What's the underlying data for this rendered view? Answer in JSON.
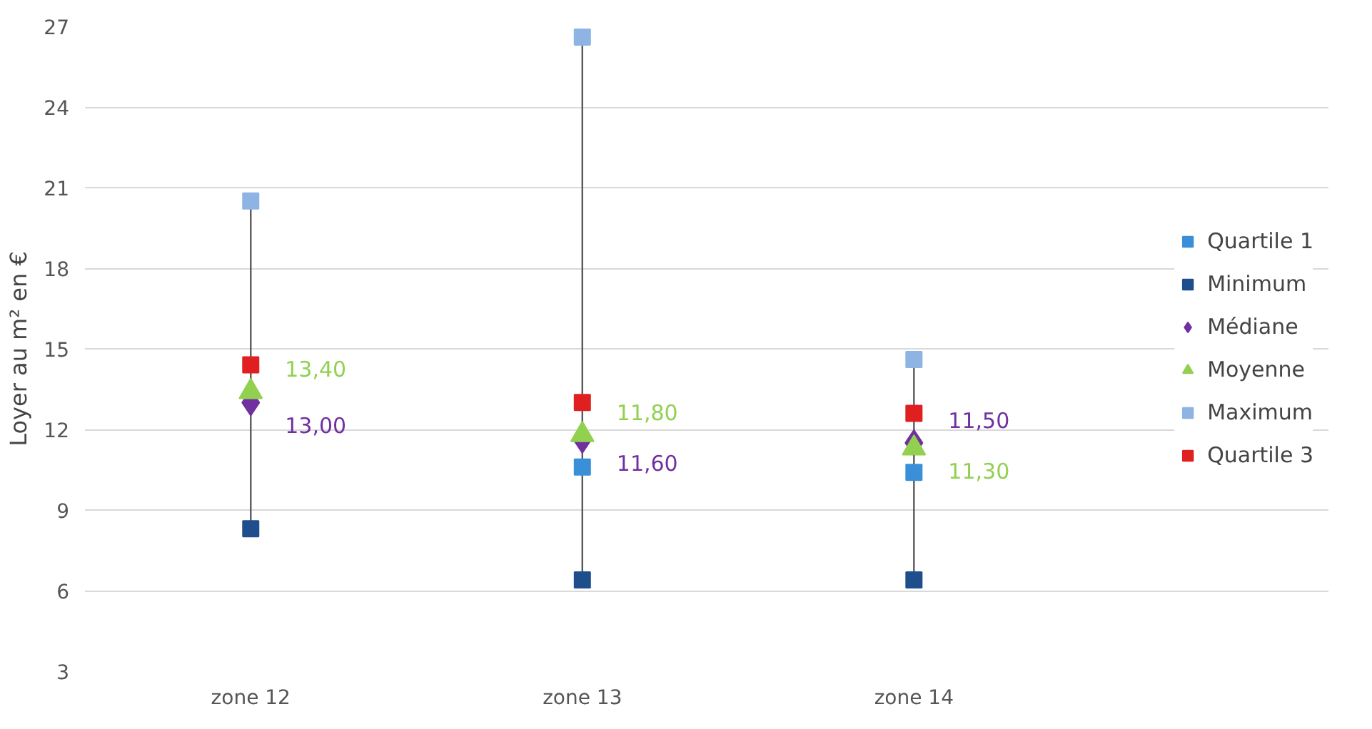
{
  "chart_data": {
    "type": "scatter",
    "ylabel": "Loyer au m² en €",
    "categories": [
      "zone 12",
      "zone 13",
      "zone 14"
    ],
    "series": [
      {
        "name": "Quartile 1",
        "color": "#3a8fd9",
        "marker": "square",
        "values": [
          null,
          10.6,
          10.4
        ]
      },
      {
        "name": "Minimum",
        "color": "#1f4e8c",
        "marker": "square",
        "values": [
          8.3,
          6.4,
          6.4
        ]
      },
      {
        "name": "Médiane",
        "color": "#7030a0",
        "marker": "diamond",
        "values": [
          13.0,
          11.6,
          11.5
        ],
        "value_labels": [
          "13,00",
          "11,60",
          "11,50"
        ]
      },
      {
        "name": "Moyenne",
        "color": "#92d050",
        "marker": "triangle",
        "values": [
          13.4,
          11.8,
          11.3
        ],
        "value_labels": [
          "13,40",
          "11,80",
          "11,30"
        ]
      },
      {
        "name": "Maximum",
        "color": "#8db4e2",
        "marker": "square",
        "values": [
          20.5,
          26.6,
          14.6
        ]
      },
      {
        "name": "Quartile 3",
        "color": "#e02020",
        "marker": "square",
        "values": [
          14.4,
          13.0,
          12.6
        ]
      }
    ],
    "ylim": [
      3,
      27
    ],
    "yticks": [
      3,
      6,
      9,
      12,
      15,
      18,
      21,
      24,
      27
    ],
    "grid": "y",
    "legend": "right"
  }
}
